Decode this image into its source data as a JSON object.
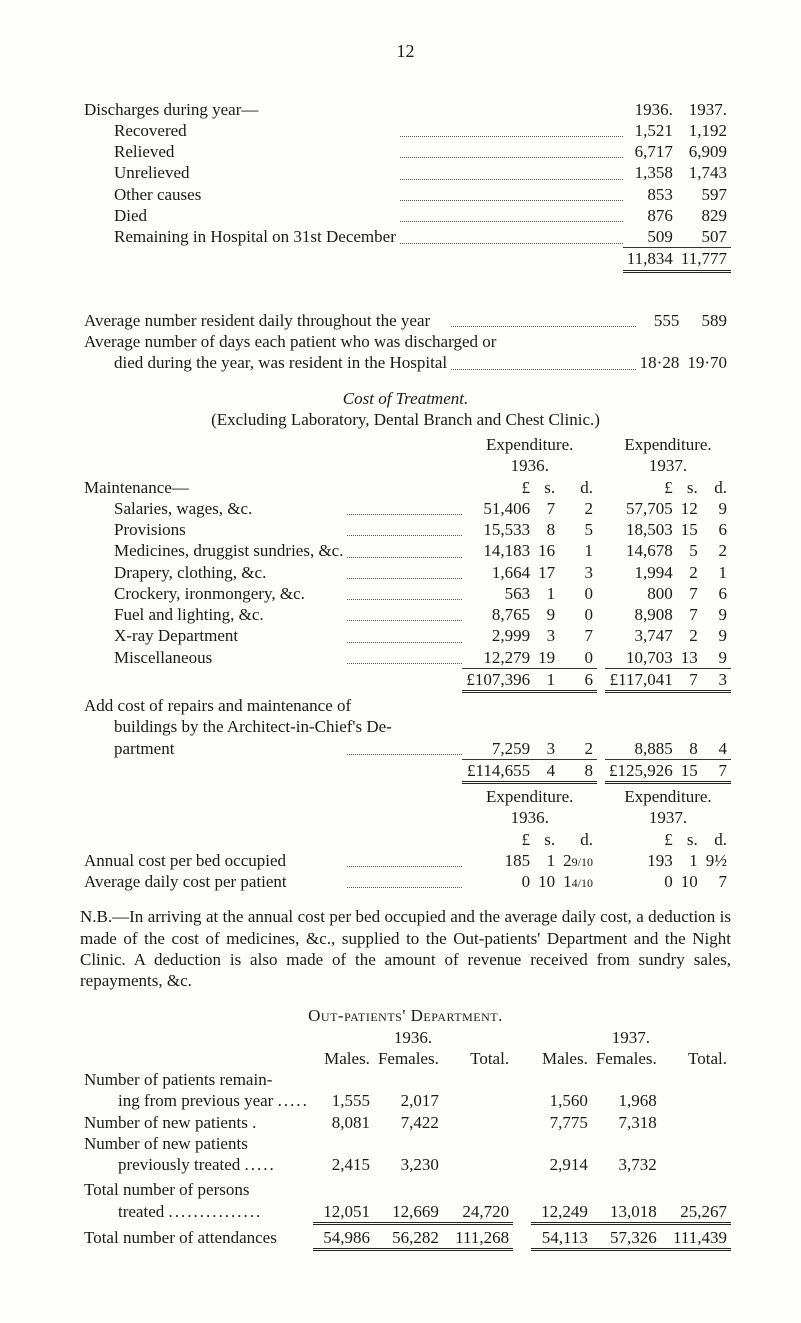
{
  "page_number": "12",
  "discharges": {
    "heading": "Discharges during year—",
    "year_a": "1936.",
    "year_b": "1937.",
    "rows": [
      {
        "label": "Recovered",
        "a": "1,521",
        "b": "1,192"
      },
      {
        "label": "Relieved",
        "a": "6,717",
        "b": "6,909"
      },
      {
        "label": "Unrelieved",
        "a": "1,358",
        "b": "1,743"
      },
      {
        "label": "Other causes",
        "a": "853",
        "b": "597"
      },
      {
        "label": "Died",
        "a": "876",
        "b": "829"
      },
      {
        "label": "Remaining in Hospital on 31st December",
        "a": "509",
        "b": "507"
      }
    ],
    "total_a": "11,834",
    "total_b": "11,777"
  },
  "averages": {
    "line1_label": "Average number resident daily throughout the year",
    "line1_a": "555",
    "line1_b": "589",
    "line2a": "Average number of days each patient who was discharged or",
    "line2b": "died during the year, was resident in the Hospital",
    "line2_a": "18·28",
    "line2_b": "19·70"
  },
  "cost_heading": "Cost of Treatment.",
  "cost_sub": "(Excluding Laboratory, Dental Branch and Chest Clinic.)",
  "exp_heading": "Expenditure.",
  "y1936": "1936.",
  "y1937": "1937.",
  "lsd_L": "£",
  "lsd_s": "s.",
  "lsd_d": "d.",
  "maintenance_label": "Maintenance—",
  "maintenance": [
    {
      "label": "Salaries, wages, &c.",
      "L36": "51,406",
      "s36": "7",
      "d36": "2",
      "L37": "57,705",
      "s37": "12",
      "d37": "9"
    },
    {
      "label": "Provisions",
      "L36": "15,533",
      "s36": "8",
      "d36": "5",
      "L37": "18,503",
      "s37": "15",
      "d37": "6"
    },
    {
      "label": "Medicines, druggist sundries, &c.",
      "L36": "14,183",
      "s36": "16",
      "d36": "1",
      "L37": "14,678",
      "s37": "5",
      "d37": "2"
    },
    {
      "label": "Drapery, clothing, &c.",
      "L36": "1,664",
      "s36": "17",
      "d36": "3",
      "L37": "1,994",
      "s37": "2",
      "d37": "1"
    },
    {
      "label": "Crockery, ironmongery, &c.",
      "L36": "563",
      "s36": "1",
      "d36": "0",
      "L37": "800",
      "s37": "7",
      "d37": "6"
    },
    {
      "label": "Fuel and lighting, &c.",
      "L36": "8,765",
      "s36": "9",
      "d36": "0",
      "L37": "8,908",
      "s37": "7",
      "d37": "9"
    },
    {
      "label": "X-ray Department",
      "L36": "2,999",
      "s36": "3",
      "d36": "7",
      "L37": "3,747",
      "s37": "2",
      "d37": "9"
    },
    {
      "label": "Miscellaneous",
      "L36": "12,279",
      "s36": "19",
      "d36": "0",
      "L37": "10,703",
      "s37": "13",
      "d37": "9"
    }
  ],
  "maint_total36": {
    "L": "£107,396",
    "s": "1",
    "d": "6"
  },
  "maint_total37": {
    "L": "£117,041",
    "s": "7",
    "d": "3"
  },
  "repairs_label_a": "Add cost of repairs and maintenance of",
  "repairs_label_b": "buildings by the Architect-in-Chief's De-",
  "repairs_label_c": "partment",
  "repairs36": {
    "L": "7,259",
    "s": "3",
    "d": "2"
  },
  "repairs37": {
    "L": "8,885",
    "s": "8",
    "d": "4"
  },
  "grand36": {
    "L": "£114,655",
    "s": "4",
    "d": "8"
  },
  "grand37": {
    "L": "£125,926",
    "s": "15",
    "d": "7"
  },
  "perbed_label": "Annual cost per bed occupied",
  "perbed36": {
    "L": "185",
    "s": "1",
    "d": "2",
    "dfrac": "9/10"
  },
  "perbed37": {
    "L": "193",
    "s": "1",
    "d": "9½"
  },
  "perpat_label": "Average daily cost per patient",
  "perpat36": {
    "L": "0",
    "s": "10",
    "d": "1",
    "dfrac": "4/10"
  },
  "perpat37": {
    "L": "0",
    "s": "10",
    "d": "7"
  },
  "nb": "N.B.—In arriving at the annual cost per bed occupied and the average daily cost, a deduction is made of the cost of medicines, &c., supplied to the Out-patients' Department and the Night Clinic. A deduction is also made of the amount of revenue received from sundry sales, repayments, &c.",
  "out_heading": "Out-patients' Department.",
  "out_cols": {
    "m": "Males.",
    "f": "Females.",
    "t": "Total."
  },
  "out_rows": [
    {
      "label_a": "Number of patients remain-",
      "label_b": "ing from previous year",
      "m36": "1,555",
      "f36": "2,017",
      "t36": "",
      "m37": "1,560",
      "f37": "1,968",
      "t37": ""
    },
    {
      "label_a": "Number of new patients .",
      "label_b": "",
      "m36": "8,081",
      "f36": "7,422",
      "t36": "",
      "m37": "7,775",
      "f37": "7,318",
      "t37": ""
    },
    {
      "label_a": "Number of new patients",
      "label_b": "previously treated",
      "m36": "2,415",
      "f36": "3,230",
      "t36": "",
      "m37": "2,914",
      "f37": "3,732",
      "t37": ""
    }
  ],
  "out_total_label_a": "Total number of persons",
  "out_total_label_b": "treated",
  "out_total": {
    "m36": "12,051",
    "f36": "12,669",
    "t36": "24,720",
    "m37": "12,249",
    "f37": "13,018",
    "t37": "25,267"
  },
  "attend_label": "Total number of attendances",
  "attend": {
    "m36": "54,986",
    "f36": "56,282",
    "t36": "111,268",
    "m37": "54,113",
    "f37": "57,326",
    "t37": "111,439"
  }
}
